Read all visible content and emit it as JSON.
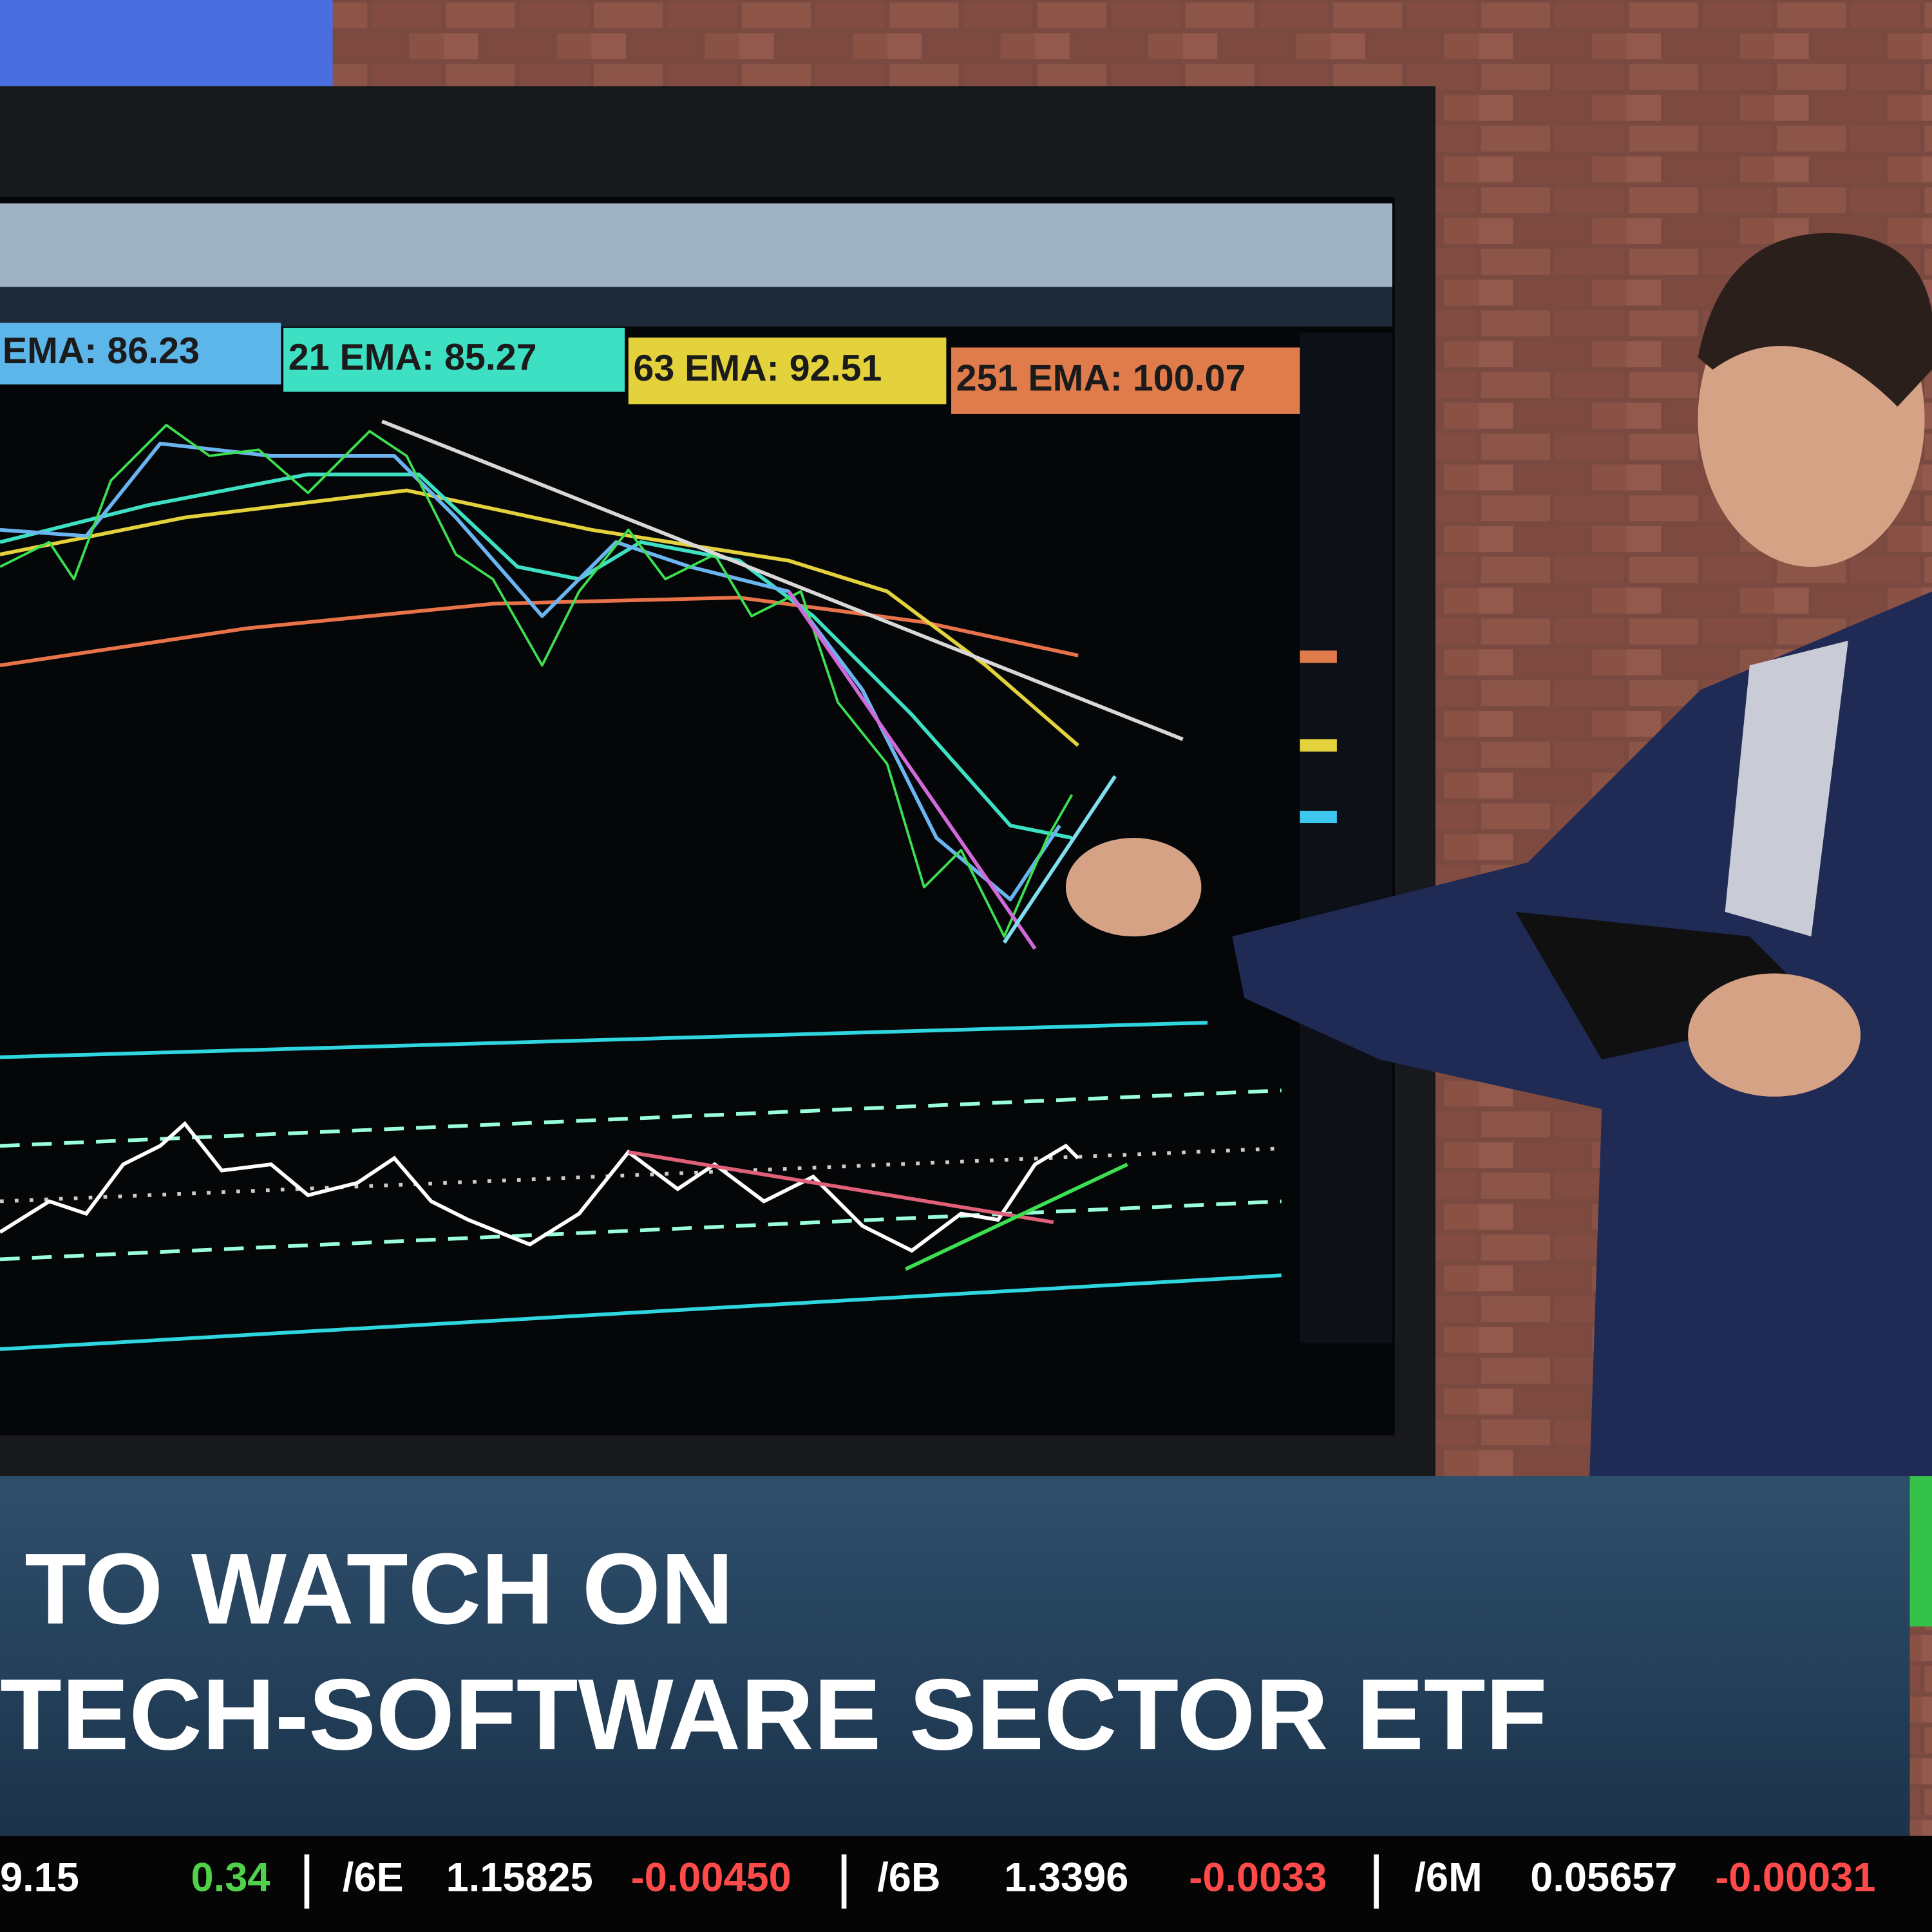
{
  "ema_labels": [
    "EMA: 86.23",
    "21 EMA: 85.27",
    "63 EMA: 92.51",
    "251 EMA: 100.07"
  ],
  "headline": {
    "line1": "TO WATCH ON",
    "line2": "TECH-SOFTWARE SECTOR ETF"
  },
  "ticker": [
    "9.15",
    "0.34",
    "/6E",
    "1.15825",
    "-0.00450",
    "/6B",
    "1.3396",
    "-0.0033",
    "/6M",
    "0.05657",
    "-0.00031"
  ]
}
